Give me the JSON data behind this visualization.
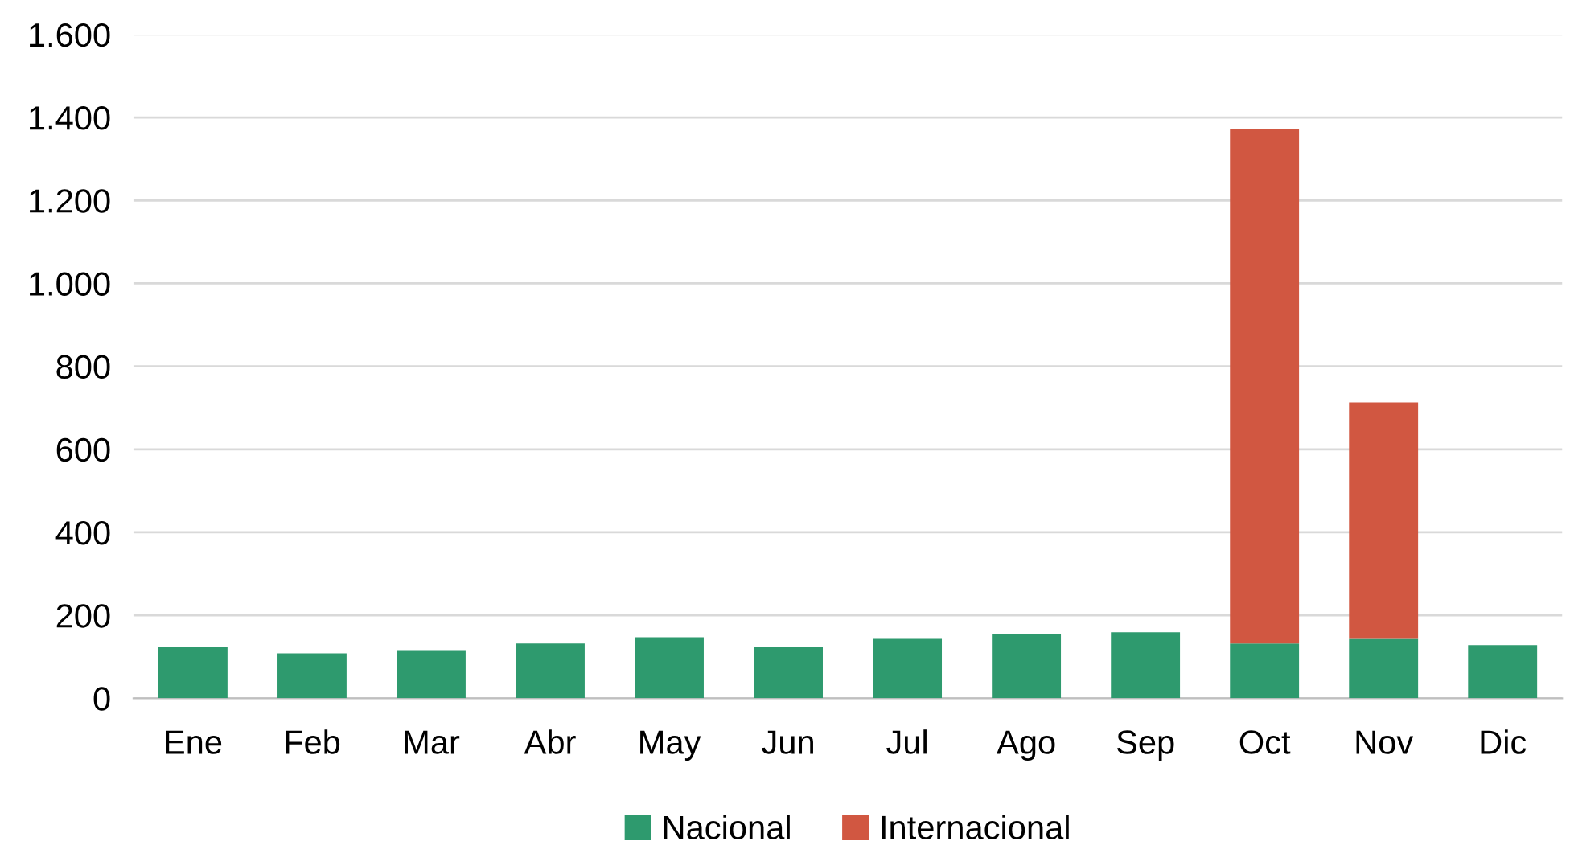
{
  "chart_data": {
    "type": "bar",
    "stacked": true,
    "categories": [
      "Ene",
      "Feb",
      "Mar",
      "Abr",
      "May",
      "Jun",
      "Jul",
      "Ago",
      "Sep",
      "Oct",
      "Nov",
      "Dic"
    ],
    "series": [
      {
        "name": "Nacional",
        "color": "#2e9a6e",
        "values": [
          124,
          108,
          116,
          132,
          147,
          124,
          143,
          155,
          159,
          132,
          143,
          128
        ]
      },
      {
        "name": "Internacional",
        "color": "#d15741",
        "values": [
          null,
          null,
          null,
          null,
          null,
          null,
          null,
          null,
          null,
          1240,
          570,
          null
        ]
      }
    ],
    "ylim": [
      0,
      1600
    ],
    "yticks": [
      {
        "value": 0,
        "label": "0"
      },
      {
        "value": 200,
        "label": "200"
      },
      {
        "value": 400,
        "label": "400"
      },
      {
        "value": 600,
        "label": "600"
      },
      {
        "value": 800,
        "label": "800"
      },
      {
        "value": 1000,
        "label": "1.000"
      },
      {
        "value": 1200,
        "label": "1.200"
      },
      {
        "value": 1400,
        "label": "1.400"
      },
      {
        "value": 1600,
        "label": "1.600"
      }
    ],
    "grid": "y",
    "legend": "bottom"
  }
}
